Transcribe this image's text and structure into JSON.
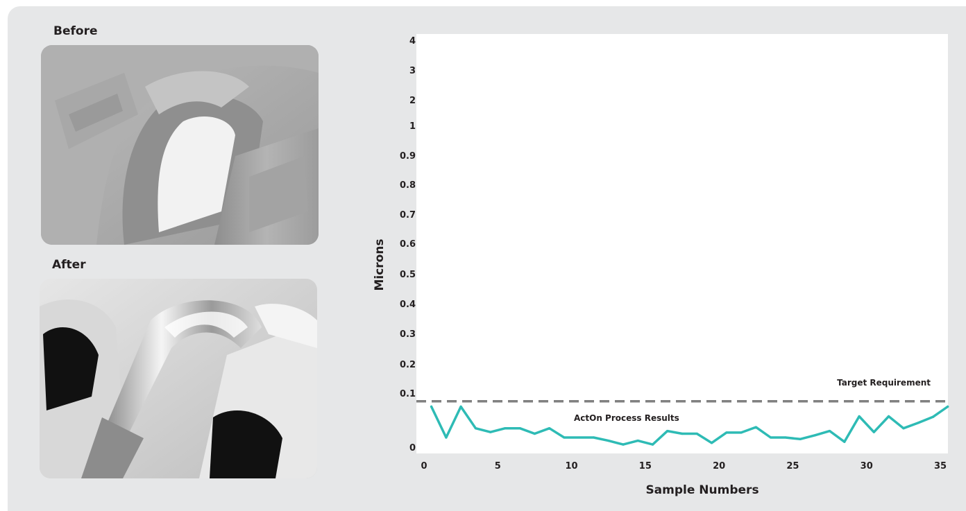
{
  "photos": {
    "before_label": "Before",
    "after_label": "After"
  },
  "colors": {
    "panel_bg": "#e6e7e8",
    "plot_bg": "#ffffff",
    "series": "#2ebbb5",
    "target": "#808080"
  },
  "chart_data": {
    "type": "line",
    "xlabel": "Sample Numbers",
    "ylabel": "Microns",
    "x_ticks": [
      0,
      5,
      10,
      15,
      20,
      25,
      30,
      35
    ],
    "y_ticks": [
      0,
      0.1,
      0.2,
      0.3,
      0.4,
      0.5,
      0.6,
      0.7,
      0.8,
      0.9,
      1,
      2,
      3,
      4
    ],
    "y_tick_labels": [
      "0",
      "0.1",
      "0.2",
      "0.3",
      "0.4",
      "0.5",
      "0.6",
      "0.7",
      "0.8",
      "0.9",
      "1",
      "2",
      "3",
      "4"
    ],
    "y_scale": "piecewise: linear 0–1 in steps of 0.1, then compressed steps to 2, 3, 4",
    "xlim": [
      0,
      35
    ],
    "ylim": [
      0,
      4
    ],
    "series": [
      {
        "name": "ActOn Process Results",
        "x": [
          0.5,
          1.5,
          2.5,
          3.5,
          4.5,
          5.5,
          6.5,
          7.5,
          8.5,
          9.5,
          10.5,
          11.5,
          12.5,
          13.5,
          14.5,
          15.5,
          16.5,
          17.5,
          18.5,
          19.5,
          20.5,
          21.5,
          22.5,
          23.5,
          24.5,
          25.5,
          26.5,
          27.5,
          28.5,
          29.5,
          30.5,
          31.5,
          32.5,
          33.5,
          34.5,
          35.5
        ],
        "y": [
          0.075,
          0.018,
          0.075,
          0.035,
          0.028,
          0.035,
          0.035,
          0.025,
          0.035,
          0.018,
          0.018,
          0.018,
          0.012,
          0.005,
          0.012,
          0.005,
          0.03,
          0.025,
          0.025,
          0.008,
          0.027,
          0.027,
          0.037,
          0.018,
          0.018,
          0.015,
          0.022,
          0.03,
          0.01,
          0.057,
          0.028,
          0.057,
          0.035,
          0.045,
          0.056,
          0.075
        ]
      }
    ],
    "target": {
      "label": "Target Requirement",
      "value": 0.085
    }
  }
}
